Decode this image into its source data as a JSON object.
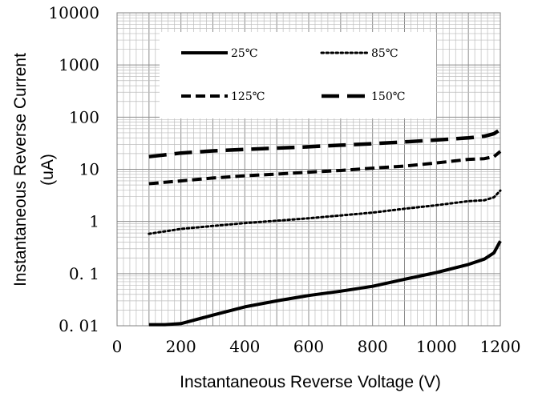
{
  "chart_data": {
    "type": "line",
    "xlabel": "Instantaneous Reverse Voltage (V)",
    "ylabel_line1": "Instantaneous Reverse Current",
    "ylabel_line2": "(uA)",
    "xlim": [
      0,
      1200
    ],
    "ylim": [
      0.01,
      10000
    ],
    "yscale": "log",
    "grid": true,
    "legend_position": "top-center",
    "x_ticks": [
      "0",
      "200",
      "400",
      "600",
      "800",
      "1000",
      "1200"
    ],
    "y_ticks": [
      "0. 01",
      "0. 1",
      "1",
      "10",
      "100",
      "1000",
      "10000"
    ],
    "series": [
      {
        "name": "25℃",
        "style": "solid",
        "color": "#000000",
        "x": [
          100,
          150,
          200,
          300,
          400,
          500,
          600,
          700,
          800,
          900,
          1000,
          1100,
          1150,
          1180,
          1200
        ],
        "y": [
          0.0105,
          0.0105,
          0.011,
          0.016,
          0.023,
          0.03,
          0.038,
          0.046,
          0.057,
          0.078,
          0.105,
          0.15,
          0.19,
          0.25,
          0.42
        ]
      },
      {
        "name": "85℃",
        "style": "dotted",
        "color": "#000000",
        "x": [
          100,
          200,
          300,
          400,
          500,
          600,
          700,
          800,
          900,
          1000,
          1100,
          1150,
          1180,
          1200
        ],
        "y": [
          0.58,
          0.72,
          0.82,
          0.93,
          1.03,
          1.15,
          1.3,
          1.48,
          1.75,
          2.05,
          2.45,
          2.55,
          2.9,
          3.9
        ]
      },
      {
        "name": "125℃",
        "style": "dashed",
        "color": "#000000",
        "x": [
          100,
          200,
          300,
          400,
          500,
          600,
          700,
          800,
          900,
          1000,
          1100,
          1150,
          1180,
          1200
        ],
        "y": [
          5.3,
          6.0,
          6.8,
          7.5,
          8.1,
          8.8,
          9.5,
          10.5,
          11.5,
          13.2,
          15.5,
          16.0,
          17.5,
          22
        ]
      },
      {
        "name": "150℃",
        "style": "longdash",
        "color": "#000000",
        "x": [
          100,
          200,
          300,
          400,
          500,
          600,
          700,
          800,
          900,
          1000,
          1100,
          1150,
          1180,
          1200
        ],
        "y": [
          17.5,
          20.5,
          22.5,
          24.0,
          25.5,
          27.0,
          29.0,
          31.0,
          33.5,
          36.5,
          40.0,
          43.0,
          48.0,
          58.0
        ]
      }
    ]
  }
}
